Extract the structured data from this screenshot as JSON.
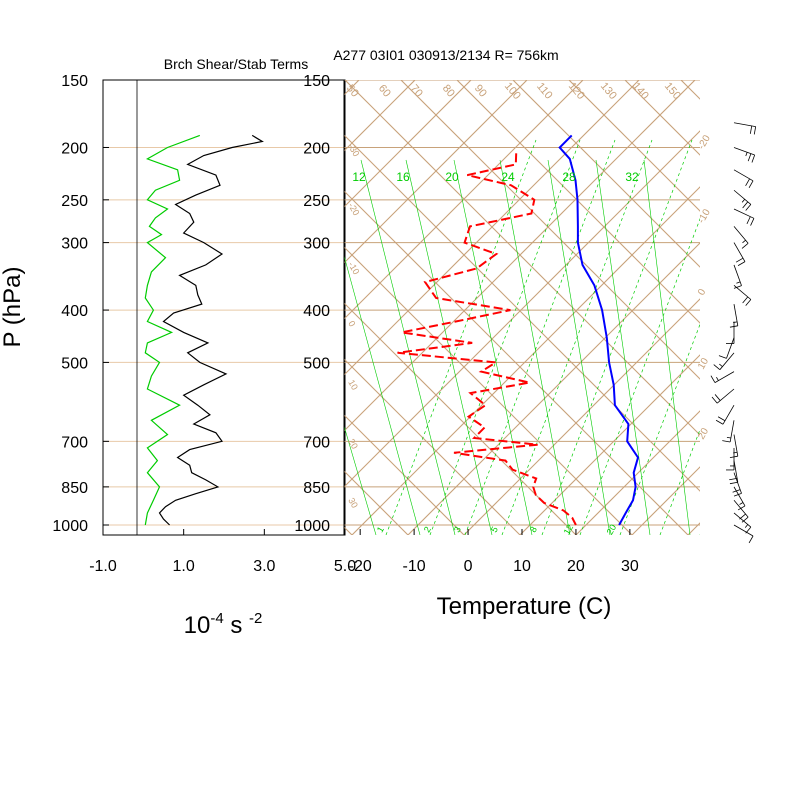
{
  "chart_data": [
    {
      "type": "line",
      "title": "Brch Shear/Stab Terms",
      "ylabel": "P (hPa)",
      "xlabel": "10-4 s -2",
      "xlabel_parts": {
        "base": "10",
        "exp1": "-4",
        "mid": " s ",
        "exp2": "-2"
      },
      "xlim": [
        -1.0,
        5.0
      ],
      "x_ticks": [
        "-1.0",
        "1.0",
        "3.0",
        "5.0"
      ],
      "y_scale": "log",
      "ylim": [
        1000,
        150
      ],
      "y_ticks": [
        "150",
        "200",
        "250",
        "300",
        "400",
        "500",
        "700",
        "850",
        "1000"
      ],
      "colors": {
        "shear": "#000000",
        "stab": "#00cc00",
        "grid": "#e8c9a8"
      },
      "series": [
        {
          "key": "shear",
          "p": [
            190,
            195,
            200,
            207,
            215,
            225,
            235,
            245,
            255,
            265,
            275,
            288,
            300,
            315,
            330,
            345,
            360,
            375,
            390,
            405,
            420,
            440,
            460,
            480,
            500,
            525,
            550,
            575,
            600,
            625,
            650,
            675,
            700,
            725,
            750,
            775,
            800,
            825,
            850,
            875,
            900,
            925,
            950,
            975,
            1000
          ],
          "values": [
            2.7,
            2.95,
            2.2,
            1.5,
            1.1,
            1.8,
            1.9,
            1.3,
            0.8,
            1.15,
            1.25,
            1.0,
            1.5,
            1.95,
            1.55,
            0.9,
            1.3,
            1.35,
            1.45,
            0.75,
            0.5,
            1.0,
            1.6,
            1.1,
            1.4,
            2.05,
            1.5,
            1.0,
            1.35,
            1.65,
            1.25,
            1.8,
            1.95,
            1.15,
            0.85,
            1.15,
            1.2,
            1.55,
            1.85,
            1.3,
            0.8,
            0.55,
            0.4,
            0.5,
            0.65
          ]
        },
        {
          "key": "stab",
          "p": [
            190,
            200,
            210,
            220,
            230,
            240,
            250,
            260,
            270,
            280,
            290,
            300,
            320,
            340,
            360,
            380,
            400,
            420,
            440,
            460,
            480,
            500,
            530,
            560,
            600,
            640,
            680,
            720,
            760,
            800,
            850,
            900,
            950,
            1000
          ],
          "values": [
            1.4,
            0.6,
            0.1,
            0.85,
            0.9,
            0.3,
            0.1,
            0.6,
            0.3,
            0.15,
            0.45,
            0.1,
            0.55,
            0.2,
            0.1,
            0.05,
            0.25,
            0.1,
            0.7,
            0.1,
            0.05,
            0.4,
            0.2,
            0.1,
            0.9,
            0.2,
            0.6,
            0.1,
            0.35,
            0.1,
            0.4,
            0.25,
            0.1,
            0.05
          ]
        }
      ]
    },
    {
      "type": "line",
      "title": "A277 03I01 030913/2134 R= 756km",
      "xlabel": "Temperature (C)",
      "xlim": [
        -23,
        43
      ],
      "x_ticks": [
        "-20",
        "-10",
        "0",
        "10",
        "20",
        "30"
      ],
      "y_scale": "log",
      "ylim": [
        1000,
        150
      ],
      "y_ticks": [
        "150",
        "200",
        "250",
        "300",
        "400",
        "500",
        "700",
        "850",
        "1000"
      ],
      "colors": {
        "temperature": "#0000ff",
        "dewpoint": "#ff0000",
        "isotherm": "#c8a27a",
        "mixing_ratio": "#00cc00",
        "adiabat": "#00cc00",
        "wind": "#000000"
      },
      "mixing_ratio_top_labels": [
        "12",
        "16",
        "20",
        "24",
        "28",
        "32"
      ],
      "mixing_ratio_bottom_labels": [
        "1",
        "2",
        "3",
        "5",
        "8",
        "12",
        "20"
      ],
      "skew_top_labels": [
        "50",
        "60",
        "70",
        "80",
        "90",
        "100",
        "110",
        "120",
        "130",
        "140",
        "150"
      ],
      "skew_left_labels": [
        "-30",
        "-20",
        "-10",
        "0",
        "10",
        "20",
        "30"
      ],
      "skew_right_labels": [
        "-20",
        "-10",
        "0",
        "10",
        "20"
      ],
      "series": [
        {
          "key": "temperature",
          "p": [
            190,
            200,
            210,
            230,
            250,
            280,
            300,
            330,
            360,
            400,
            450,
            500,
            550,
            600,
            650,
            700,
            750,
            800,
            850,
            900,
            950,
            1000
          ],
          "values": [
            -53,
            -53,
            -49,
            -44,
            -40,
            -35,
            -32,
            -27,
            -21,
            -15,
            -9,
            -4,
            1,
            5,
            11,
            14,
            19,
            21,
            24,
            26,
            27,
            28
          ]
        },
        {
          "key": "dewpoint",
          "p": [
            205,
            215,
            225,
            235,
            250,
            265,
            280,
            300,
            315,
            335,
            355,
            380,
            400,
            420,
            440,
            460,
            480,
            500,
            520,
            545,
            570,
            600,
            630,
            660,
            690,
            710,
            735,
            760,
            790,
            820,
            850,
            880,
            910,
            940,
            970,
            1000
          ],
          "values": [
            -60,
            -58,
            -65,
            -55,
            -48,
            -46,
            -55,
            -53,
            -45,
            -46,
            -53,
            -48,
            -32,
            -40,
            -48,
            -33,
            -45,
            -25,
            -26,
            -15,
            -24,
            -19,
            -20,
            -15,
            -15,
            -2,
            -16,
            -5,
            -2,
            4,
            5,
            7,
            10,
            15,
            18,
            20
          ]
        }
      ],
      "wind_barbs": [
        {
          "p": 180,
          "speed": 20,
          "dir": 100
        },
        {
          "p": 200,
          "speed": 25,
          "dir": 110
        },
        {
          "p": 220,
          "speed": 20,
          "dir": 120
        },
        {
          "p": 240,
          "speed": 25,
          "dir": 130
        },
        {
          "p": 260,
          "speed": 20,
          "dir": 115
        },
        {
          "p": 280,
          "speed": 15,
          "dir": 140
        },
        {
          "p": 300,
          "speed": 20,
          "dir": 150
        },
        {
          "p": 330,
          "speed": 15,
          "dir": 160
        },
        {
          "p": 360,
          "speed": 20,
          "dir": 130
        },
        {
          "p": 390,
          "speed": 15,
          "dir": 170
        },
        {
          "p": 420,
          "speed": 10,
          "dir": 180
        },
        {
          "p": 450,
          "speed": 10,
          "dir": 200
        },
        {
          "p": 480,
          "speed": 15,
          "dir": 220
        },
        {
          "p": 520,
          "speed": 15,
          "dir": 240
        },
        {
          "p": 560,
          "speed": 20,
          "dir": 230
        },
        {
          "p": 600,
          "speed": 20,
          "dir": 210
        },
        {
          "p": 640,
          "speed": 15,
          "dir": 190
        },
        {
          "p": 680,
          "speed": 15,
          "dir": 170
        },
        {
          "p": 720,
          "speed": 15,
          "dir": 180
        },
        {
          "p": 760,
          "speed": 20,
          "dir": 170
        },
        {
          "p": 800,
          "speed": 20,
          "dir": 160
        },
        {
          "p": 850,
          "speed": 15,
          "dir": 150
        },
        {
          "p": 900,
          "speed": 20,
          "dir": 140
        },
        {
          "p": 950,
          "speed": 15,
          "dir": 130
        },
        {
          "p": 1000,
          "speed": 10,
          "dir": 120
        }
      ]
    }
  ]
}
